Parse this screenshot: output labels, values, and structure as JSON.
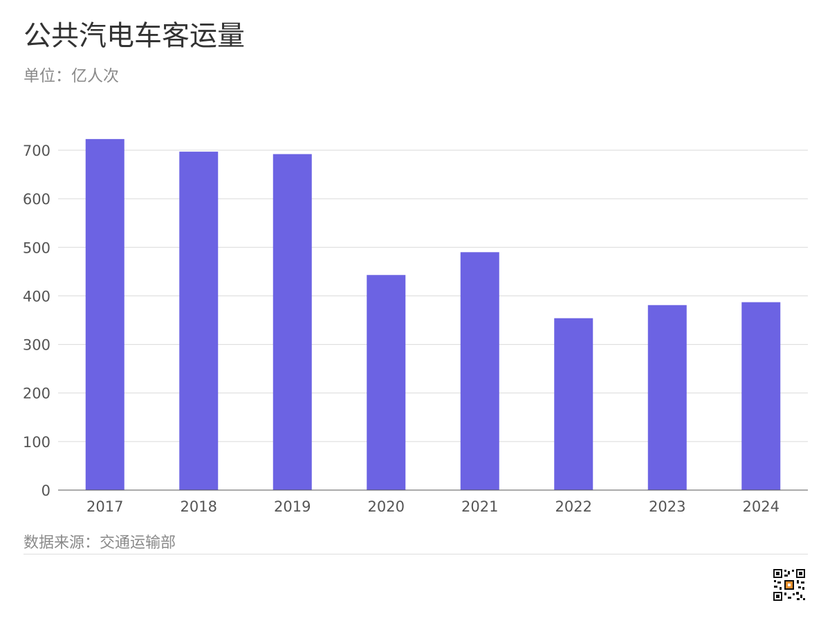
{
  "header": {
    "title": "公共汽电车客运量",
    "subtitle": "单位：亿人次"
  },
  "footer": {
    "source": "数据来源：交通运输部"
  },
  "colors": {
    "bar": "#6c63e3",
    "grid": "#d9d9d9",
    "axis": "#555555",
    "tick_text": "#555555"
  },
  "chart_data": {
    "type": "bar",
    "title": "公共汽电车客运量",
    "subtitle": "单位：亿人次",
    "xlabel": "",
    "ylabel": "",
    "categories": [
      "2017",
      "2018",
      "2019",
      "2020",
      "2021",
      "2022",
      "2023",
      "2024"
    ],
    "values": [
      723,
      697,
      692,
      443,
      490,
      354,
      381,
      387
    ],
    "yticks": [
      0,
      100,
      200,
      300,
      400,
      500,
      600,
      700
    ],
    "ylim": [
      0,
      700
    ],
    "grid": true,
    "legend": "none"
  }
}
